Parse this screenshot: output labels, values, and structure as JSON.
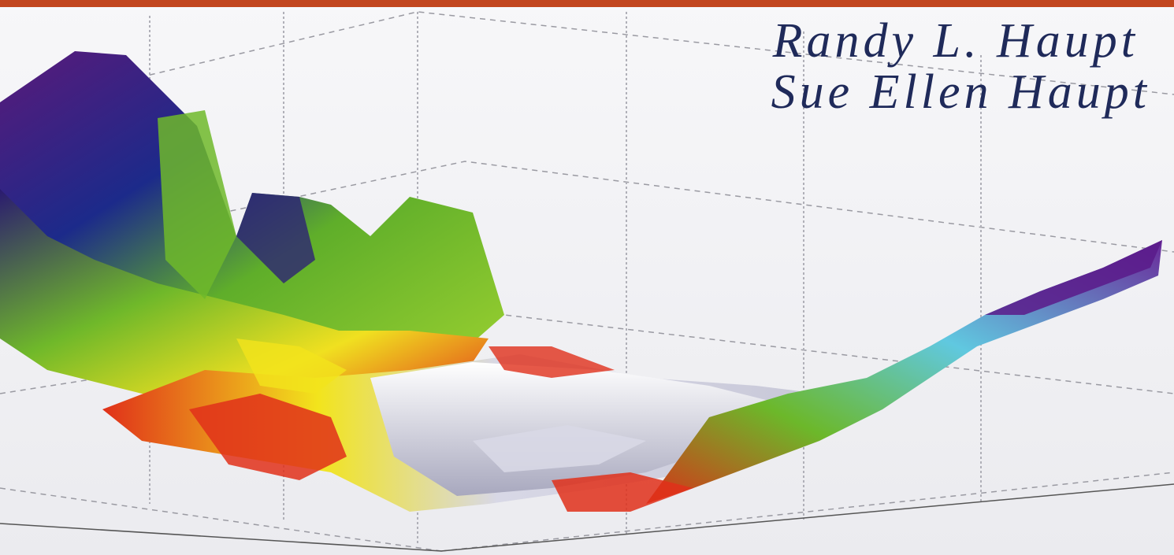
{
  "authors": [
    "Randy L. Haupt",
    "Sue Ellen Haupt"
  ]
}
